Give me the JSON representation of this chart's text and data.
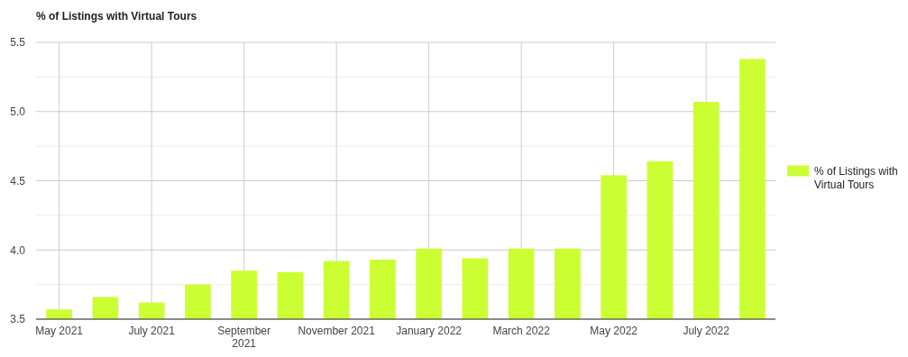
{
  "chart_data": {
    "type": "bar",
    "title": "% of Listings with Virtual Tours",
    "categories": [
      "May 2021",
      null,
      "July 2021",
      null,
      "September 2021",
      null,
      "November 2021",
      null,
      "January 2022",
      null,
      "March 2022",
      null,
      "May 2022",
      null,
      "July 2022",
      null
    ],
    "series": [
      {
        "name": "% of Listings with Virtual Tours",
        "color": "#ccff33",
        "values": [
          3.57,
          3.66,
          3.62,
          3.75,
          3.85,
          3.84,
          3.92,
          3.93,
          4.01,
          3.94,
          4.01,
          4.01,
          4.54,
          4.64,
          5.07,
          5.38
        ]
      }
    ],
    "ylim": [
      3.5,
      5.5
    ],
    "yticks": [
      {
        "value": 3.5,
        "label": "3.5"
      },
      {
        "value": 3.75,
        "label": null
      },
      {
        "value": 4,
        "label": "4.0"
      },
      {
        "value": 4.25,
        "label": null
      },
      {
        "value": 4.5,
        "label": "4.5"
      },
      {
        "value": 4.75,
        "label": null
      },
      {
        "value": 5,
        "label": "5.0"
      },
      {
        "value": 5.25,
        "label": null
      },
      {
        "value": 5.5,
        "label": "5.5"
      }
    ],
    "grid": true,
    "legend": "right"
  }
}
